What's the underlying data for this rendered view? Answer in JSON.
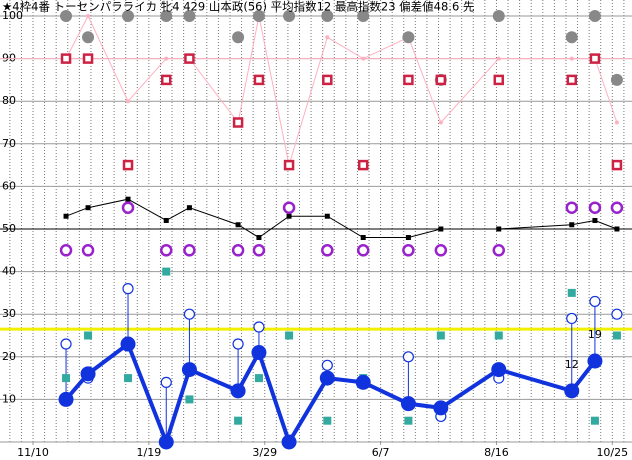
{
  "chart_data": {
    "type": "line",
    "title": "★4枠4番 トーセンパラライカ 牝4 429 山本政(56) 平均指数12 最高指数23 偏差値48.6 先",
    "x": [
      2.85,
      4.75,
      8.2,
      11.5,
      13.5,
      17.7,
      19.5,
      22.1,
      25.4,
      28.5,
      32.4,
      35.2,
      40.2,
      46.5,
      48.5,
      50.4
    ],
    "xlim": [
      -2.85,
      51.7
    ],
    "xticks": [
      {
        "value": 0,
        "label": "11/10"
      },
      {
        "value": 10,
        "label": "1/19"
      },
      {
        "value": 20,
        "label": "3/29"
      },
      {
        "value": 30,
        "label": "6/7"
      },
      {
        "value": 40,
        "label": "8/16"
      },
      {
        "value": 50,
        "label": "10/25"
      }
    ],
    "x_minor_step": 1,
    "ylim": [
      0,
      100
    ],
    "yticks": [
      10,
      20,
      30,
      40,
      50,
      60,
      70,
      80,
      90,
      100
    ],
    "grid": true,
    "hlines": [
      {
        "value": 90,
        "color": "#ffb0c0"
      },
      {
        "value": 50,
        "color": "#000000"
      },
      {
        "value": 26.5,
        "color": "#f0f000"
      }
    ],
    "series": [
      {
        "marker": "dot",
        "line": true,
        "color": "#ffb0c0",
        "values": [
          90,
          100,
          80,
          90,
          90,
          75,
          100,
          65,
          95,
          90,
          95,
          75,
          90,
          90,
          90,
          75
        ]
      },
      {
        "marker": "circle",
        "line": false,
        "color": "#888888",
        "values": [
          100,
          95,
          100,
          100,
          100,
          95,
          100,
          100,
          100,
          100,
          95,
          85,
          100,
          95,
          100,
          85
        ]
      },
      {
        "marker": "open-square",
        "line": false,
        "color": "#cc2244",
        "values": [
          90,
          90,
          65,
          85,
          90,
          75,
          85,
          65,
          85,
          65,
          85,
          85,
          85,
          85,
          90,
          65
        ]
      },
      {
        "marker": "square",
        "line": true,
        "color": "#000000",
        "values": [
          53,
          55,
          57,
          52,
          55,
          51,
          48,
          53,
          53,
          48,
          48,
          50,
          50,
          51,
          52,
          50
        ]
      },
      {
        "marker": "open-circle-thick",
        "line": false,
        "color": "#9922cc",
        "values": [
          45,
          45,
          55,
          45,
          45,
          45,
          45,
          55,
          45,
          45,
          45,
          45,
          45,
          55,
          55,
          55
        ]
      },
      {
        "marker": "square",
        "line": false,
        "color": "#33aaa0",
        "values": [
          15,
          25,
          15,
          40,
          10,
          5,
          15,
          25,
          5,
          15,
          5,
          25,
          25,
          35,
          5,
          25
        ]
      },
      {
        "marker": "open-circle",
        "line": false,
        "color": "#1133dd",
        "values": [
          23,
          15,
          36,
          14,
          30,
          23,
          27,
          null,
          18,
          null,
          20,
          6,
          15,
          29,
          33,
          30
        ]
      },
      {
        "marker": "big-circle",
        "line": true,
        "color": "#1133dd",
        "values": [
          10,
          16,
          23,
          0,
          17,
          12,
          21,
          0,
          15,
          14,
          9,
          8,
          17,
          12,
          19,
          null
        ]
      }
    ],
    "annotations": [
      {
        "x": 46.5,
        "y": 12,
        "text": "12"
      },
      {
        "x": 48.5,
        "y": 19,
        "text": "19"
      }
    ]
  }
}
